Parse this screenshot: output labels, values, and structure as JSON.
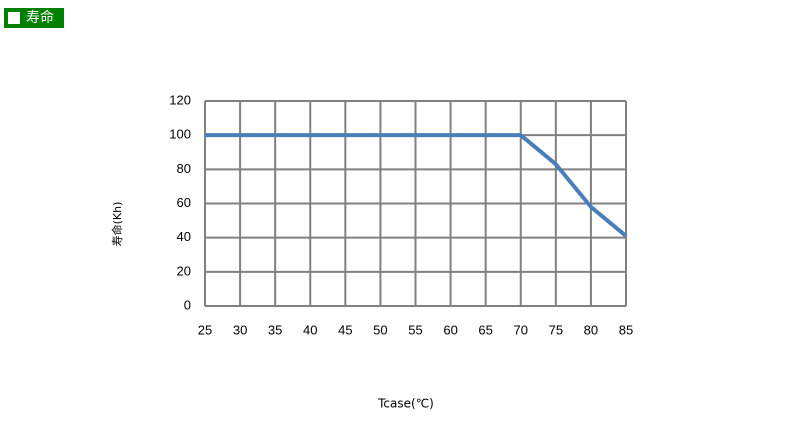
{
  "chart_data": {
    "type": "line",
    "title": "寿命",
    "x_label": "Tcase(℃)",
    "y_label": "寿命(Kh)",
    "x": [
      25,
      70,
      75,
      80,
      85
    ],
    "series": [
      {
        "name": "寿命",
        "color": "#4a7ebb",
        "values": [
          100,
          100,
          83,
          58,
          41
        ]
      }
    ],
    "xlim": [
      25,
      85
    ],
    "xticks": [
      25,
      30,
      35,
      40,
      45,
      50,
      55,
      60,
      65,
      70,
      75,
      80,
      85
    ],
    "ylim": [
      0,
      120
    ],
    "yticks": [
      0,
      20,
      40,
      60,
      80,
      100,
      120
    ],
    "grid": true
  }
}
